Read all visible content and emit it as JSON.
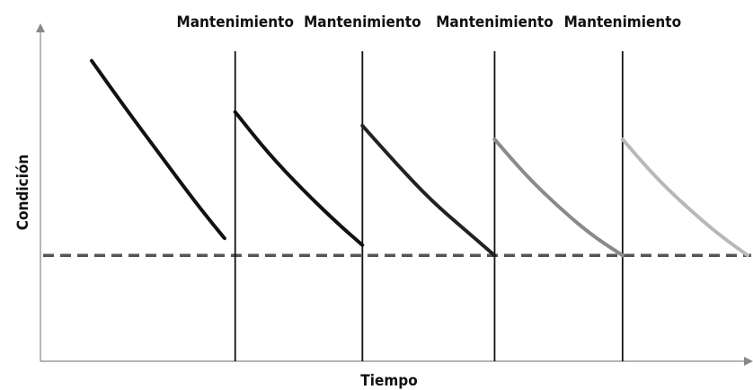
{
  "chart_data": {
    "type": "line",
    "title": "",
    "xlabel": "Tiempo",
    "ylabel": "Condición",
    "xlim": [
      0,
      100
    ],
    "ylim": [
      0,
      100
    ],
    "grid": false,
    "legend": "none",
    "threshold": {
      "y": 31,
      "style": "dashed",
      "color": "#555555"
    },
    "maintenance_events": [
      {
        "label": "Mantenimiento",
        "x": 27.4
      },
      {
        "label": "Mantenimiento",
        "x": 45.3
      },
      {
        "label": "Mantenimiento",
        "x": 63.9
      },
      {
        "label": "Mantenimiento",
        "x": 81.9
      }
    ],
    "series": [
      {
        "color": "#111111",
        "x": [
          7.2,
          12.0,
          17.0,
          22.0,
          25.9
        ],
        "y": [
          88,
          74,
          60,
          46,
          36
        ]
      },
      {
        "color": "#111111",
        "x": [
          27.4,
          32.0,
          37.0,
          42.0,
          45.3
        ],
        "y": [
          73,
          61,
          50,
          40,
          34
        ]
      },
      {
        "color": "#222222",
        "x": [
          45.3,
          50.0,
          55.0,
          60.0,
          63.9
        ],
        "y": [
          69,
          58,
          47,
          38,
          31
        ]
      },
      {
        "color": "#8a8a8a",
        "x": [
          63.9,
          68.5,
          73.0,
          77.5,
          81.9
        ],
        "y": [
          65,
          54,
          45,
          37,
          31
        ]
      },
      {
        "color": "#b8b8b8",
        "x": [
          81.9,
          86.5,
          91.0,
          95.5,
          99.5
        ],
        "y": [
          65,
          54,
          45,
          37,
          31
        ]
      }
    ]
  }
}
